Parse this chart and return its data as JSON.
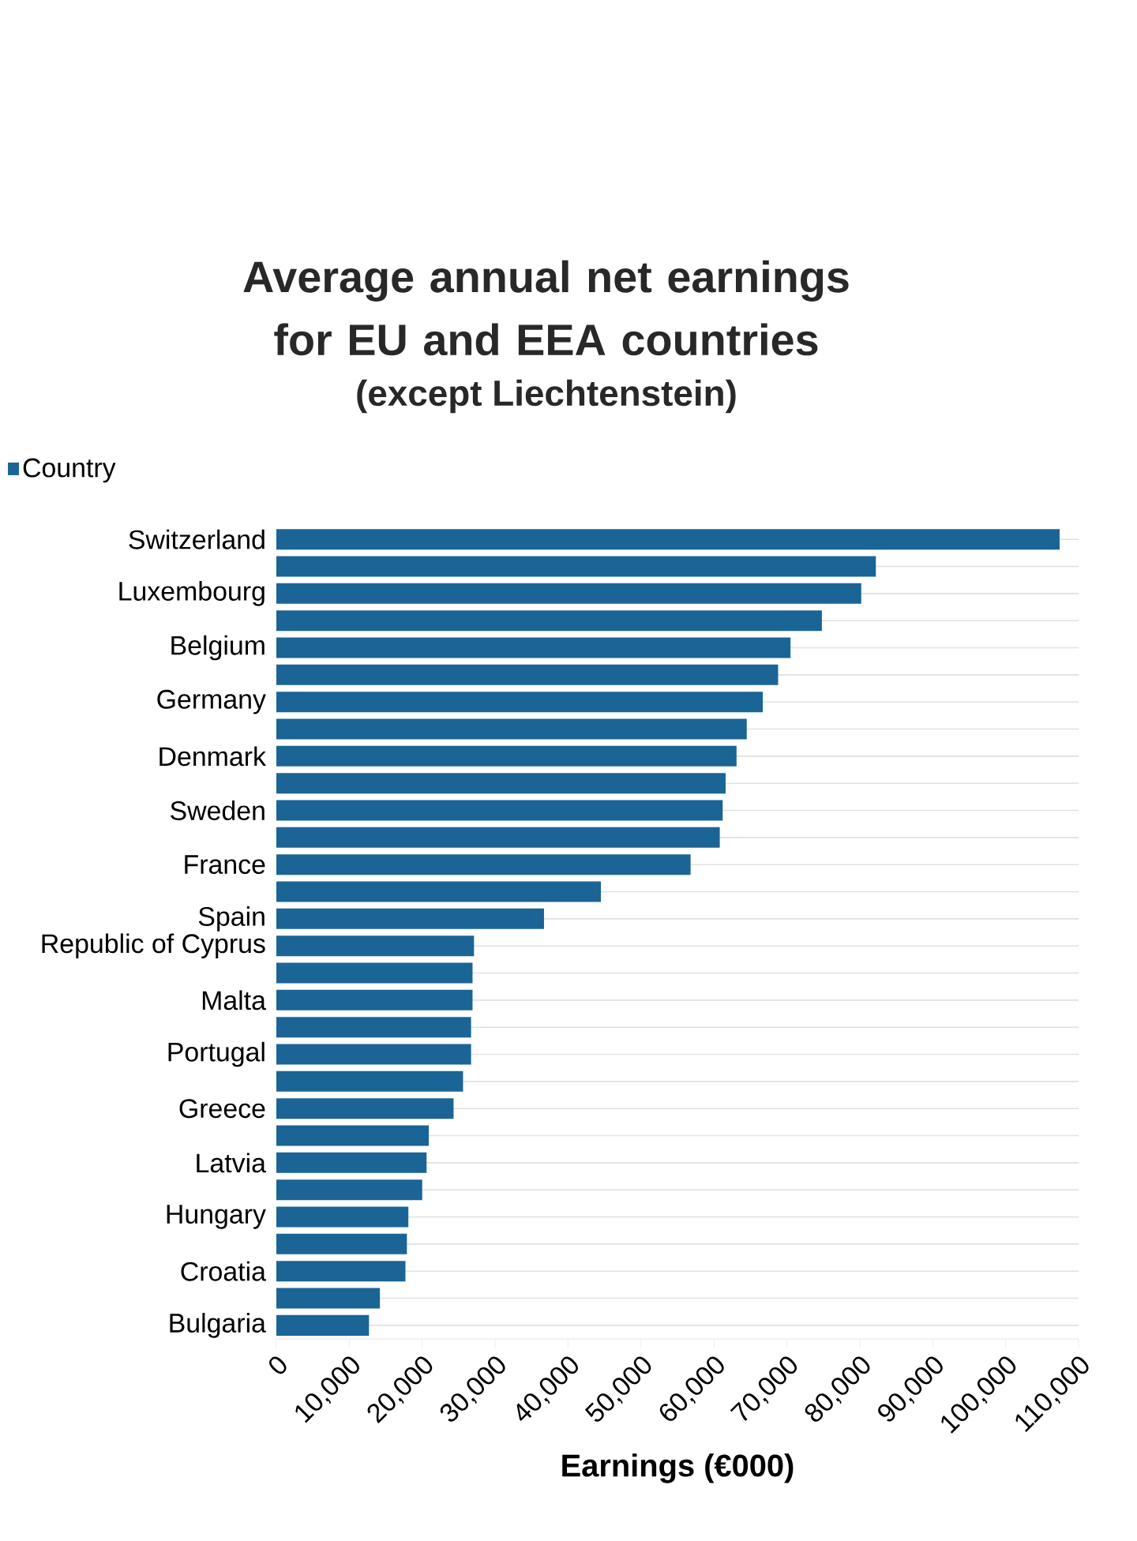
{
  "chart_data": {
    "type": "bar",
    "orientation": "horizontal",
    "title": "Average annual net earnings for EU and EEA countries",
    "subtitle": "(except Liechtenstein)",
    "xlabel": "Earnings (€000)",
    "categories": [
      "Switzerland",
      null,
      "Luxembourg",
      null,
      "Belgium",
      null,
      "Germany",
      null,
      "Denmark",
      null,
      "Sweden",
      null,
      "France",
      null,
      "Spain",
      "Republic of Cyprus",
      null,
      "Malta",
      null,
      "Portugal",
      null,
      "Greece",
      null,
      "Latvia",
      null,
      "Hungary",
      null,
      "Croatia",
      null,
      "Bulgaria"
    ],
    "series": [
      {
        "name": "Country",
        "color": "#1b6496",
        "values": [
          107400,
          82200,
          80200,
          74800,
          70500,
          68800,
          66700,
          64500,
          63100,
          61600,
          61200,
          60800,
          56800,
          44500,
          36700,
          27100,
          26900,
          26900,
          26700,
          26700,
          25600,
          24300,
          20900,
          20600,
          20000,
          18100,
          17900,
          17700,
          14200,
          12700
        ]
      }
    ],
    "xlim": [
      0,
      110000
    ],
    "xticks": [
      0,
      {
        "value": 10000,
        "label": "10,000"
      },
      {
        "value": 20000,
        "label": "20,000"
      },
      {
        "value": 30000,
        "label": "30,000"
      },
      {
        "value": 40000,
        "label": "40,000"
      },
      {
        "value": 50000,
        "label": "50,000"
      },
      {
        "value": 60000,
        "label": "60,000"
      },
      {
        "value": 70000,
        "label": "70,000"
      },
      {
        "value": 80000,
        "label": "80,000"
      },
      {
        "value": 90000,
        "label": "90,000"
      },
      {
        "value": 100000,
        "label": "100,000"
      },
      {
        "value": 110000,
        "label": "110,000"
      }
    ],
    "grid": "y",
    "legend": "top left"
  }
}
